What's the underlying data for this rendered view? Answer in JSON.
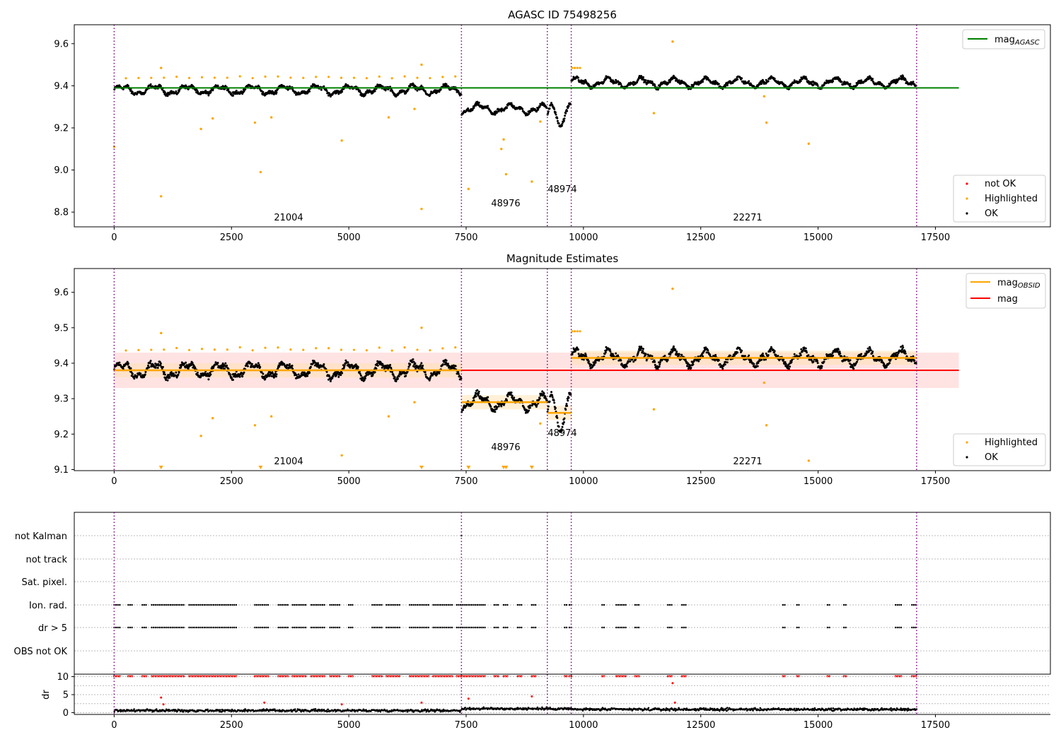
{
  "panels": {
    "p1": {
      "title": "AGASC ID 75498256",
      "x_ticks": [
        0,
        2500,
        5000,
        7500,
        10000,
        12500,
        15000,
        17500
      ],
      "y_ticks": [
        8.8,
        9.0,
        9.2,
        9.4,
        9.6
      ],
      "ylim": [
        8.73,
        9.69
      ],
      "legend_top": [
        {
          "label_main": "mag",
          "label_sub": "AGASC",
          "color": "#008000"
        }
      ],
      "legend_bottom": [
        {
          "label": "not OK",
          "color": "#ff0000"
        },
        {
          "label": "Highlighted",
          "color": "#ffa500"
        },
        {
          "label": "OK",
          "color": "#000000"
        }
      ],
      "obs_labels": [
        "21004",
        "48976",
        "48974",
        "22271"
      ]
    },
    "p2": {
      "title": "Magnitude Estimates",
      "x_ticks": [
        0,
        2500,
        5000,
        7500,
        10000,
        12500,
        15000,
        17500
      ],
      "y_ticks": [
        9.1,
        9.2,
        9.3,
        9.4,
        9.5,
        9.6
      ],
      "ylim": [
        9.097,
        9.667
      ],
      "legend_top": [
        {
          "label_main": "mag",
          "label_sub": "OBSID",
          "color": "#ffa500"
        },
        {
          "label_main": "mag",
          "label_sub": "",
          "color": "#ff0000"
        }
      ],
      "legend_bottom": [
        {
          "label": "Highlighted",
          "color": "#ffa500"
        },
        {
          "label": "OK",
          "color": "#000000"
        }
      ],
      "obs_labels": [
        "21004",
        "48976",
        "48974",
        "22271"
      ]
    },
    "p3": {
      "flag_labels": [
        "not Kalman",
        "not track",
        "Sat. pixel.",
        "Ion. rad.",
        "dr > 5",
        "OBS not OK"
      ]
    },
    "p4": {
      "ylabel": "dr",
      "y_ticks": [
        0,
        5,
        10
      ],
      "x_ticks": [
        0,
        2500,
        5000,
        7500,
        10000,
        12500,
        15000,
        17500
      ]
    }
  },
  "chart_data": [
    {
      "type": "scatter",
      "title": "AGASC ID 75498256",
      "xlim": [
        -850,
        19950
      ],
      "ylim": [
        8.73,
        9.69
      ],
      "obsid_boundaries": [
        0,
        7400,
        9230,
        9740,
        17100
      ],
      "observations": [
        {
          "obsid": "21004",
          "x_range": [
            0,
            7400
          ],
          "mean_mag": 9.38
        },
        {
          "obsid": "48976",
          "x_range": [
            7400,
            9230
          ],
          "mean_mag": 9.29
        },
        {
          "obsid": "48974",
          "x_range": [
            9230,
            9740
          ],
          "mean_mag": 9.26
        },
        {
          "obsid": "22271",
          "x_range": [
            9740,
            17100
          ],
          "mean_mag": 9.415
        }
      ],
      "mag_agasc": 9.39,
      "series": [
        {
          "name": "not OK",
          "points": []
        },
        {
          "name": "Highlighted",
          "points": [
            [
              0,
              9.11
            ],
            [
              1000,
              8.875
            ],
            [
              1000,
              9.485
            ],
            [
              1850,
              9.195
            ],
            [
              2100,
              9.245
            ],
            [
              3000,
              9.225
            ],
            [
              3120,
              8.99
            ],
            [
              3350,
              9.25
            ],
            [
              4850,
              9.14
            ],
            [
              5850,
              9.25
            ],
            [
              6400,
              9.29
            ],
            [
              6550,
              8.815
            ],
            [
              6550,
              9.5
            ],
            [
              7550,
              8.91
            ],
            [
              8250,
              9.1
            ],
            [
              8300,
              9.145
            ],
            [
              8350,
              8.98
            ],
            [
              8900,
              8.945
            ],
            [
              9080,
              9.23
            ],
            [
              11500,
              9.27
            ],
            [
              11900,
              9.61
            ],
            [
              13850,
              9.35
            ],
            [
              13900,
              9.225
            ],
            [
              14800,
              9.125
            ]
          ]
        },
        {
          "name": "OK",
          "points": []
        }
      ]
    },
    {
      "type": "scatter",
      "title": "Magnitude Estimates",
      "xlim": [
        -850,
        19950
      ],
      "ylim": [
        9.097,
        9.667
      ],
      "mag": 9.38,
      "mag_band": [
        9.33,
        9.43
      ],
      "mag_obsid": [
        {
          "obsid": "21004",
          "x_range": [
            0,
            7400
          ],
          "value": 9.38
        },
        {
          "obsid": "48976",
          "x_range": [
            7400,
            9230
          ],
          "value": 9.29
        },
        {
          "obsid": "48974",
          "x_range": [
            9230,
            9740
          ],
          "value": 9.26
        },
        {
          "obsid": "22271",
          "x_range": [
            9740,
            17100
          ],
          "value": 9.415
        }
      ],
      "series": [
        {
          "name": "Highlighted",
          "points": [
            [
              1000,
              9.485
            ],
            [
              1850,
              9.195
            ],
            [
              2100,
              9.245
            ],
            [
              3000,
              9.225
            ],
            [
              3350,
              9.25
            ],
            [
              4850,
              9.14
            ],
            [
              5850,
              9.25
            ],
            [
              6400,
              9.29
            ],
            [
              6550,
              9.5
            ],
            [
              9080,
              9.23
            ],
            [
              11500,
              9.27
            ],
            [
              11900,
              9.61
            ],
            [
              13850,
              9.345
            ],
            [
              13900,
              9.225
            ],
            [
              14800,
              9.125
            ]
          ]
        },
        {
          "name": "OK",
          "points": []
        }
      ]
    },
    {
      "type": "scatter",
      "subtitle": "flags",
      "categories": [
        "not Kalman",
        "not track",
        "Sat. pixel.",
        "Ion. rad.",
        "dr > 5",
        "OBS not OK"
      ],
      "flag_x_ranges": [
        [
          0,
          150
        ],
        [
          300,
          400
        ],
        [
          600,
          700
        ],
        [
          800,
          1500
        ],
        [
          1600,
          2600
        ],
        [
          3000,
          3300
        ],
        [
          3500,
          3700
        ],
        [
          3800,
          4100
        ],
        [
          4200,
          4500
        ],
        [
          4600,
          4800
        ],
        [
          5000,
          5100
        ],
        [
          5500,
          5700
        ],
        [
          5800,
          6100
        ],
        [
          6300,
          6700
        ],
        [
          6800,
          7200
        ],
        [
          7300,
          7900
        ],
        [
          8100,
          8200
        ],
        [
          8300,
          8400
        ],
        [
          8600,
          8700
        ],
        [
          8900,
          9000
        ],
        [
          9600,
          9650
        ],
        [
          9700,
          9740
        ],
        [
          10400,
          10450
        ],
        [
          10700,
          10900
        ],
        [
          11100,
          11200
        ],
        [
          11800,
          11900
        ],
        [
          12100,
          12200
        ],
        [
          14250,
          14300
        ],
        [
          14550,
          14600
        ],
        [
          15200,
          15250
        ],
        [
          15550,
          15600
        ],
        [
          16650,
          16800
        ],
        [
          17000,
          17100
        ]
      ]
    },
    {
      "type": "scatter",
      "ylabel": "dr",
      "ylim": [
        -0.5,
        10.5
      ],
      "baseline_dr": 0.6,
      "outliers": [
        [
          1000,
          4.2
        ],
        [
          1050,
          2.3
        ],
        [
          3200,
          2.8
        ],
        [
          4850,
          2.3
        ],
        [
          6550,
          2.8
        ],
        [
          7550,
          3.9
        ],
        [
          8900,
          4.5
        ],
        [
          11900,
          8.2
        ],
        [
          11950,
          2.8
        ]
      ],
      "clipped_at": 10
    }
  ]
}
